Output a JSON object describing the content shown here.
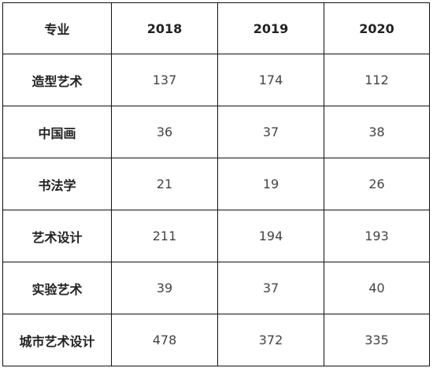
{
  "table": {
    "headers": [
      "专业",
      "2018",
      "2019",
      "2020"
    ],
    "rows": [
      {
        "major": "造型艺术",
        "values": [
          "137",
          "174",
          "112"
        ]
      },
      {
        "major": "中国画",
        "values": [
          "36",
          "37",
          "38"
        ]
      },
      {
        "major": "书法学",
        "values": [
          "21",
          "19",
          "26"
        ]
      },
      {
        "major": "艺术设计",
        "values": [
          "211",
          "194",
          "193"
        ]
      },
      {
        "major": "实验艺术",
        "values": [
          "39",
          "37",
          "40"
        ]
      },
      {
        "major": "城市艺术设计",
        "values": [
          "478",
          "372",
          "335"
        ]
      }
    ]
  }
}
